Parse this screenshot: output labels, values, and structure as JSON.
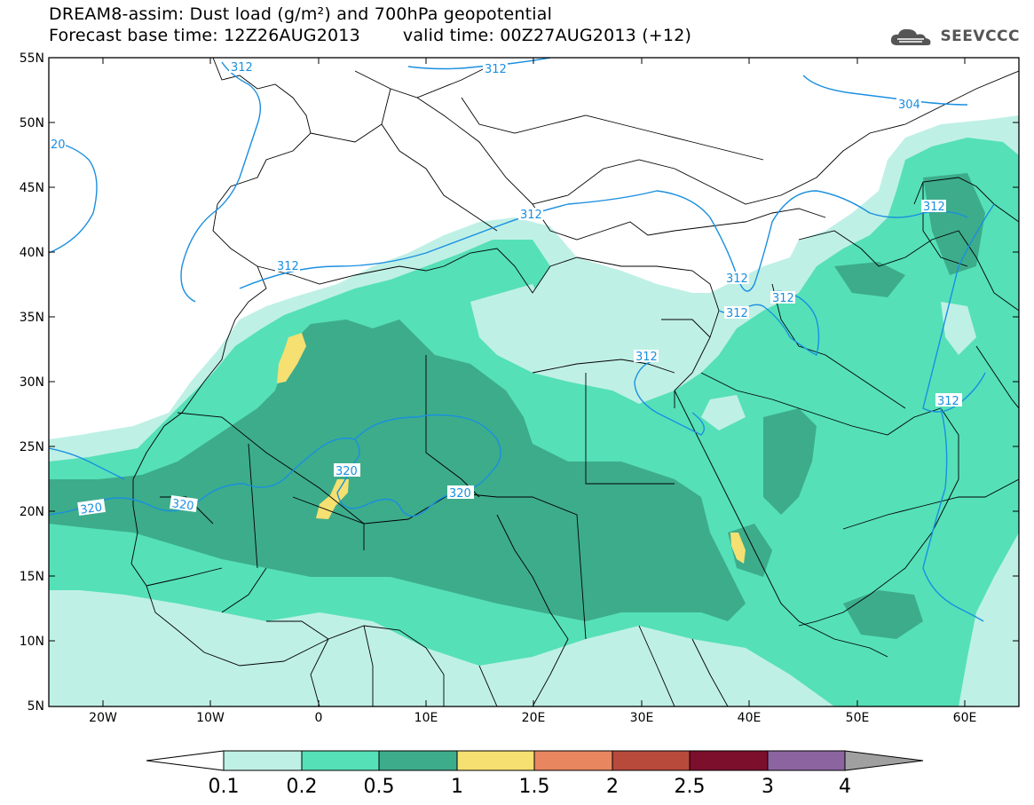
{
  "header": {
    "title_line1": "DREAM8-assim: Dust load (g/m²) and 700hPa geopotential",
    "title_line2_base": "Forecast base time: 12Z26AUG2013",
    "title_line2_valid": "valid time: 00Z27AUG2013 (+12)",
    "logo_text": "SEEVCCC"
  },
  "axes": {
    "lat_labels": [
      "55N",
      "50N",
      "45N",
      "40N",
      "35N",
      "30N",
      "25N",
      "20N",
      "15N",
      "10N",
      "5N"
    ],
    "lon_labels": [
      "20W",
      "10W",
      "0",
      "10E",
      "20E",
      "30E",
      "40E",
      "50E",
      "60E"
    ]
  },
  "contour_labels": [
    "312",
    "312",
    "312",
    "312",
    "312",
    "312",
    "312",
    "312",
    "312",
    "304",
    "20",
    "320",
    "320",
    "320",
    "320"
  ],
  "colorbar": {
    "tick_labels": [
      "0.1",
      "0.2",
      "0.5",
      "1",
      "1.5",
      "2",
      "2.5",
      "3",
      "4"
    ],
    "colors": [
      "#ffffff",
      "#bff0e6",
      "#55e0b8",
      "#3dac8a",
      "#f5e071",
      "#e8875f",
      "#b84a3c",
      "#7c0f2c",
      "#8c64a0",
      "#a0a0a0"
    ]
  },
  "colors": {
    "light": "#bff0e6",
    "medium": "#55e0b8",
    "dark": "#3dac8a",
    "yellow": "#f5e071",
    "contour": "#1a8fe0"
  }
}
